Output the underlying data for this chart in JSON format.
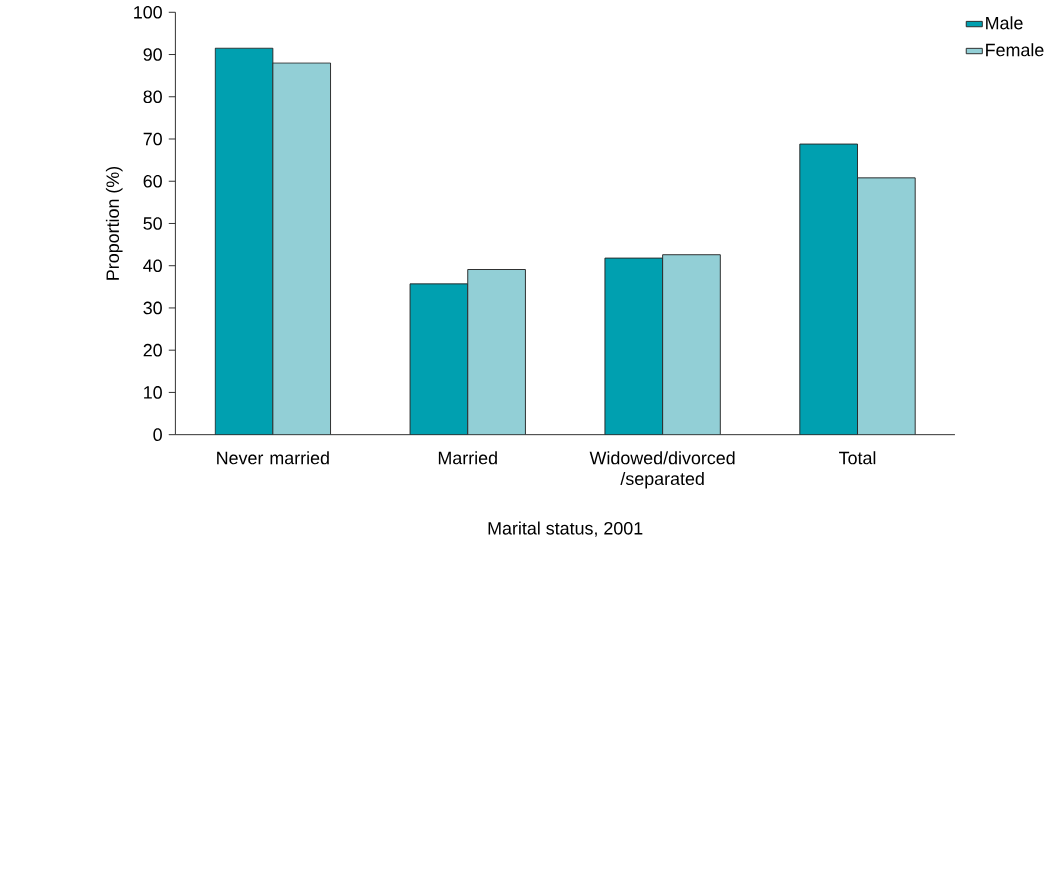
{
  "chart_data": {
    "type": "bar",
    "xlabel": "Marital status, 2001",
    "ylabel": "Proportion (%)",
    "categories": [
      "Never married",
      "Married",
      "Widowed/divorced /separated",
      "Total"
    ],
    "series": [
      {
        "name": "Male",
        "color": "#00a0b0",
        "values": [
          91.5,
          35.7,
          41.8,
          68.8
        ]
      },
      {
        "name": "Female",
        "color": "#92cfd6",
        "values": [
          88,
          39.1,
          42.6,
          60.8
        ]
      }
    ],
    "ylim": [
      0,
      100
    ],
    "yticks": [
      0,
      10,
      20,
      30,
      40,
      50,
      60,
      70,
      80,
      90,
      100
    ],
    "grid": false,
    "legend": "top right"
  }
}
